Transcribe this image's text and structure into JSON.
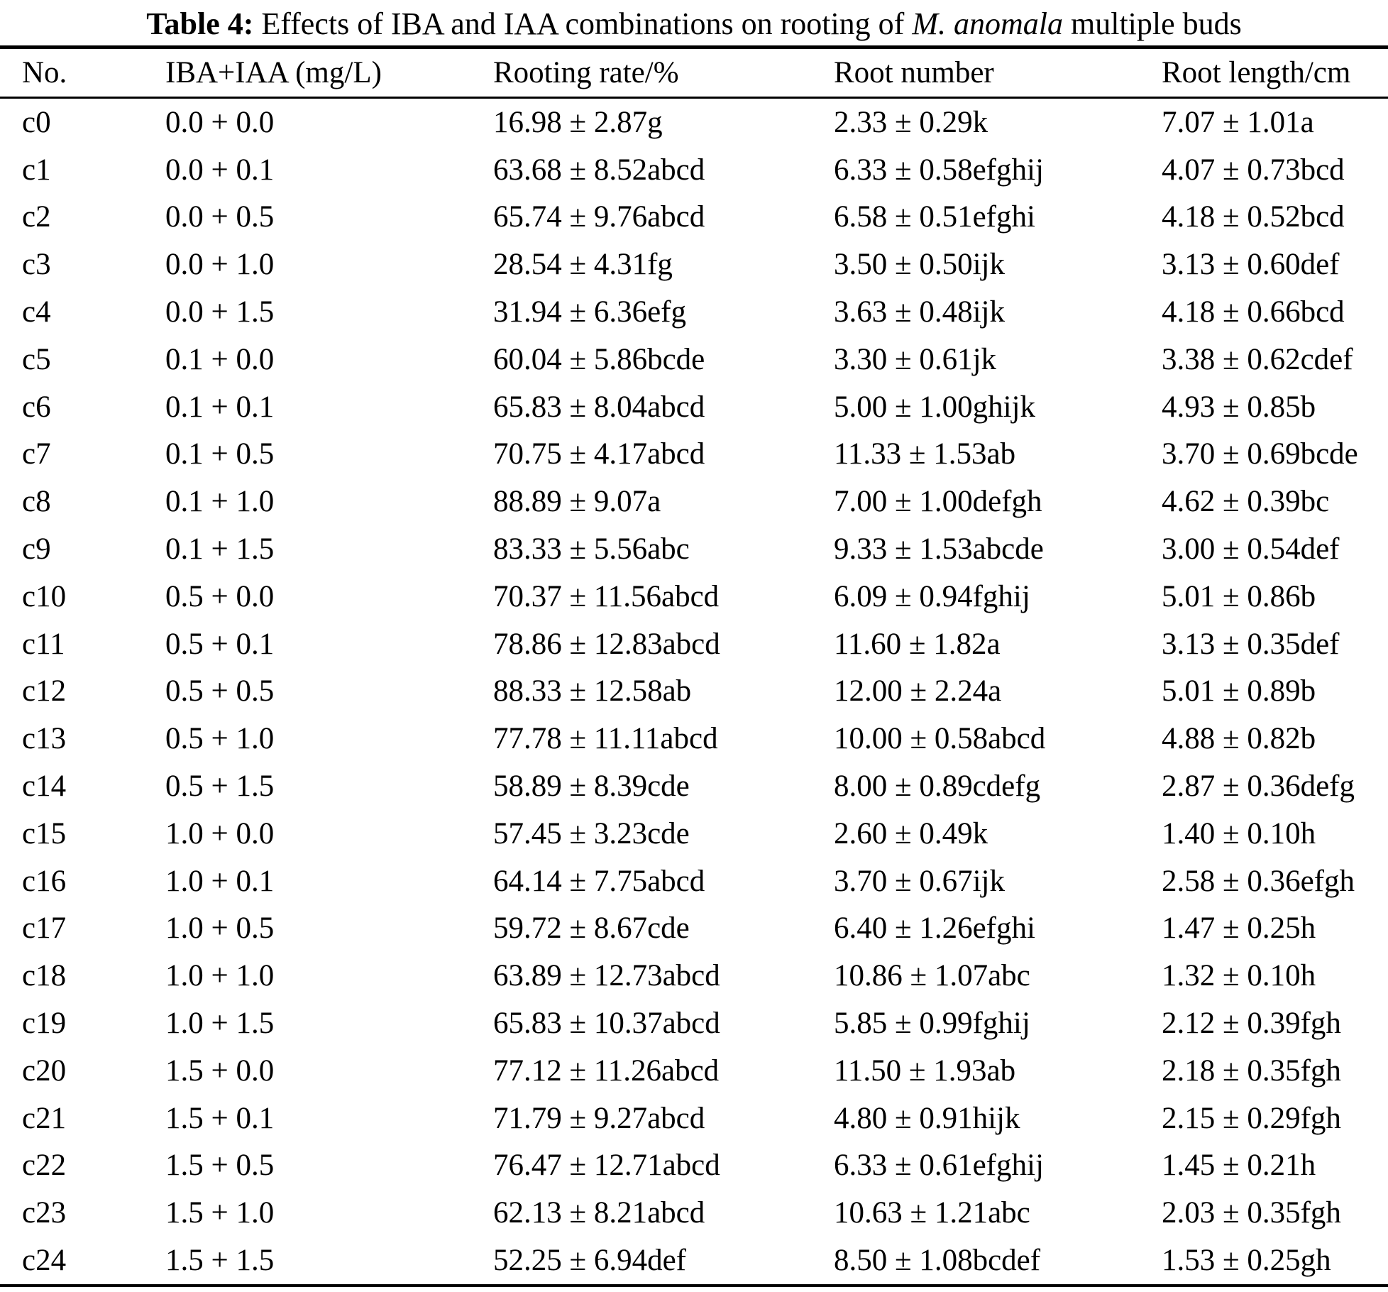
{
  "caption": {
    "label": "Table 4:",
    "body": " Effects of IBA and IAA combinations on rooting of ",
    "species": "M. anomala",
    "tail": " multiple buds"
  },
  "table": {
    "headers": [
      "No.",
      "IBA+IAA (mg/L)",
      "Rooting rate/%",
      "Root number",
      "Root length/cm"
    ],
    "rows": [
      [
        "c0",
        "0.0 + 0.0",
        "16.98 ± 2.87g",
        "2.33 ± 0.29k",
        "7.07 ± 1.01a"
      ],
      [
        "c1",
        "0.0 + 0.1",
        "63.68 ± 8.52abcd",
        "6.33 ± 0.58efghij",
        "4.07 ± 0.73bcd"
      ],
      [
        "c2",
        "0.0 + 0.5",
        "65.74 ± 9.76abcd",
        "6.58 ± 0.51efghi",
        "4.18 ± 0.52bcd"
      ],
      [
        "c3",
        "0.0 + 1.0",
        "28.54 ± 4.31fg",
        "3.50 ± 0.50ijk",
        "3.13 ± 0.60def"
      ],
      [
        "c4",
        "0.0 + 1.5",
        "31.94 ± 6.36efg",
        "3.63 ± 0.48ijk",
        "4.18 ± 0.66bcd"
      ],
      [
        "c5",
        "0.1 + 0.0",
        "60.04 ± 5.86bcde",
        "3.30 ± 0.61jk",
        "3.38 ± 0.62cdef"
      ],
      [
        "c6",
        "0.1 + 0.1",
        "65.83 ± 8.04abcd",
        "5.00 ± 1.00ghijk",
        "4.93 ± 0.85b"
      ],
      [
        "c7",
        "0.1 + 0.5",
        "70.75 ± 4.17abcd",
        "11.33 ± 1.53ab",
        "3.70 ± 0.69bcde"
      ],
      [
        "c8",
        "0.1 + 1.0",
        "88.89 ± 9.07a",
        "7.00 ± 1.00defgh",
        "4.62 ± 0.39bc"
      ],
      [
        "c9",
        "0.1 + 1.5",
        "83.33 ± 5.56abc",
        "9.33 ± 1.53abcde",
        "3.00 ± 0.54def"
      ],
      [
        "c10",
        "0.5 + 0.0",
        "70.37 ± 11.56abcd",
        "6.09 ± 0.94fghij",
        "5.01 ± 0.86b"
      ],
      [
        "c11",
        "0.5 + 0.1",
        "78.86 ± 12.83abcd",
        "11.60 ± 1.82a",
        "3.13 ± 0.35def"
      ],
      [
        "c12",
        "0.5 + 0.5",
        "88.33 ± 12.58ab",
        "12.00 ± 2.24a",
        "5.01 ± 0.89b"
      ],
      [
        "c13",
        "0.5 + 1.0",
        "77.78 ± 11.11abcd",
        "10.00 ± 0.58abcd",
        "4.88 ± 0.82b"
      ],
      [
        "c14",
        "0.5 + 1.5",
        "58.89 ± 8.39cde",
        "8.00 ± 0.89cdefg",
        "2.87 ± 0.36defg"
      ],
      [
        "c15",
        "1.0 + 0.0",
        "57.45 ± 3.23cde",
        "2.60 ± 0.49k",
        "1.40 ± 0.10h"
      ],
      [
        "c16",
        "1.0 + 0.1",
        "64.14 ± 7.75abcd",
        "3.70 ± 0.67ijk",
        "2.58 ± 0.36efgh"
      ],
      [
        "c17",
        "1.0 + 0.5",
        "59.72 ± 8.67cde",
        "6.40 ± 1.26efghi",
        "1.47 ± 0.25h"
      ],
      [
        "c18",
        "1.0 + 1.0",
        "63.89 ± 12.73abcd",
        "10.86 ± 1.07abc",
        "1.32 ± 0.10h"
      ],
      [
        "c19",
        "1.0 + 1.5",
        "65.83 ± 10.37abcd",
        "5.85 ± 0.99fghij",
        "2.12 ± 0.39fgh"
      ],
      [
        "c20",
        "1.5 + 0.0",
        "77.12 ± 11.26abcd",
        "11.50 ± 1.93ab",
        "2.18 ± 0.35fgh"
      ],
      [
        "c21",
        "1.5 + 0.1",
        "71.79 ± 9.27abcd",
        "4.80 ± 0.91hijk",
        "2.15 ± 0.29fgh"
      ],
      [
        "c22",
        "1.5 + 0.5",
        "76.47 ± 12.71abcd",
        "6.33 ± 0.61efghij",
        "1.45 ± 0.21h"
      ],
      [
        "c23",
        "1.5 + 1.0",
        "62.13 ± 8.21abcd",
        "10.63 ± 1.21abc",
        "2.03 ± 0.35fgh"
      ],
      [
        "c24",
        "1.5 + 1.5",
        "52.25 ± 6.94def",
        "8.50 ± 1.08bcdef",
        "1.53 ± 0.25gh"
      ]
    ]
  }
}
